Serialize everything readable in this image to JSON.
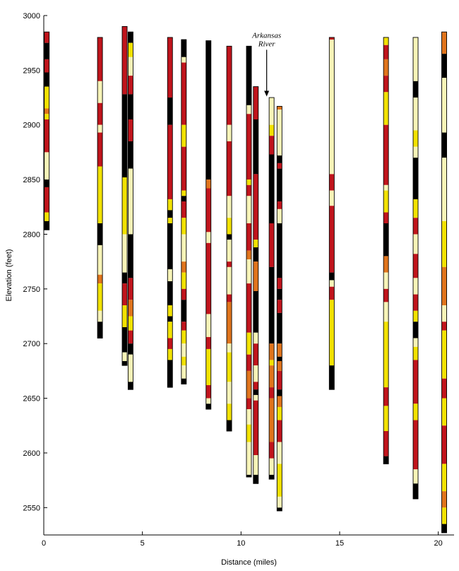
{
  "chart_data": {
    "type": "bar",
    "xlabel": "Distance (miles)",
    "ylabel": "Elevation (feet)",
    "xlim": [
      0,
      20.8
    ],
    "ylim": [
      2525,
      3000
    ],
    "xticks": [
      0,
      5,
      10,
      15,
      20
    ],
    "yticks": [
      2550,
      2600,
      2650,
      2700,
      2750,
      2800,
      2850,
      2900,
      2950,
      3000
    ],
    "annotation": {
      "lines": [
        "Arkansas",
        "River"
      ],
      "x": 11.3,
      "arrow_top": 2970,
      "arrow_bottom": 2926
    },
    "colors": {
      "B": "#000000",
      "R": "#c0141c",
      "O": "#e0741c",
      "Y": "#f2e200",
      "C": "#f7f4b8"
    },
    "legend_colors": [
      "B",
      "R",
      "O",
      "Y",
      "C"
    ],
    "wells": [
      {
        "x": 0.15,
        "top": 2985,
        "bottom": 2804,
        "layers": [
          [
            "R",
            2975
          ],
          [
            "B",
            2960
          ],
          [
            "R",
            2948
          ],
          [
            "B",
            2935
          ],
          [
            "Y",
            2915
          ],
          [
            "O",
            2910
          ],
          [
            "Y",
            2905
          ],
          [
            "R",
            2875
          ],
          [
            "C",
            2850
          ],
          [
            "B",
            2843
          ],
          [
            "R",
            2820
          ],
          [
            "Y",
            2812
          ],
          [
            "B",
            2804
          ]
        ]
      },
      {
        "x": 2.85,
        "top": 2980,
        "bottom": 2705,
        "layers": [
          [
            "R",
            2940
          ],
          [
            "C",
            2920
          ],
          [
            "R",
            2900
          ],
          [
            "C",
            2893
          ],
          [
            "R",
            2862
          ],
          [
            "Y",
            2810
          ],
          [
            "B",
            2790
          ],
          [
            "C",
            2763
          ],
          [
            "O",
            2755
          ],
          [
            "Y",
            2730
          ],
          [
            "C",
            2720
          ],
          [
            "B",
            2705
          ]
        ]
      },
      {
        "x": 4.1,
        "top": 2990,
        "bottom": 2680,
        "layers": [
          [
            "R",
            2928
          ],
          [
            "B",
            2852
          ],
          [
            "Y",
            2800
          ],
          [
            "C",
            2765
          ],
          [
            "B",
            2755
          ],
          [
            "R",
            2735
          ],
          [
            "Y",
            2715
          ],
          [
            "B",
            2692
          ],
          [
            "C",
            2684
          ],
          [
            "B",
            2680
          ]
        ]
      },
      {
        "x": 4.4,
        "top": 2985,
        "bottom": 2658,
        "layers": [
          [
            "B",
            2975
          ],
          [
            "Y",
            2962
          ],
          [
            "C",
            2945
          ],
          [
            "R",
            2928
          ],
          [
            "B",
            2905
          ],
          [
            "R",
            2885
          ],
          [
            "B",
            2860
          ],
          [
            "C",
            2800
          ],
          [
            "B",
            2760
          ],
          [
            "R",
            2740
          ],
          [
            "O",
            2725
          ],
          [
            "Y",
            2712
          ],
          [
            "R",
            2700
          ],
          [
            "B",
            2690
          ],
          [
            "C",
            2665
          ],
          [
            "B",
            2658
          ]
        ]
      },
      {
        "x": 6.4,
        "top": 2980,
        "bottom": 2660,
        "layers": [
          [
            "R",
            2925
          ],
          [
            "B",
            2900
          ],
          [
            "R",
            2832
          ],
          [
            "Y",
            2822
          ],
          [
            "B",
            2815
          ],
          [
            "Y",
            2810
          ],
          [
            "B",
            2768
          ],
          [
            "C",
            2757
          ],
          [
            "B",
            2735
          ],
          [
            "Y",
            2725
          ],
          [
            "B",
            2720
          ],
          [
            "Y",
            2705
          ],
          [
            "R",
            2695
          ],
          [
            "Y",
            2685
          ],
          [
            "B",
            2660
          ]
        ]
      },
      {
        "x": 7.1,
        "top": 2978,
        "bottom": 2663,
        "layers": [
          [
            "B",
            2962
          ],
          [
            "C",
            2957
          ],
          [
            "R",
            2900
          ],
          [
            "Y",
            2880
          ],
          [
            "R",
            2840
          ],
          [
            "Y",
            2835
          ],
          [
            "B",
            2830
          ],
          [
            "R",
            2815
          ],
          [
            "Y",
            2800
          ],
          [
            "C",
            2775
          ],
          [
            "O",
            2765
          ],
          [
            "Y",
            2750
          ],
          [
            "R",
            2740
          ],
          [
            "B",
            2720
          ],
          [
            "R",
            2712
          ],
          [
            "Y",
            2700
          ],
          [
            "C",
            2688
          ],
          [
            "Y",
            2680
          ],
          [
            "C",
            2668
          ],
          [
            "B",
            2663
          ]
        ]
      },
      {
        "x": 8.35,
        "top": 2977,
        "bottom": 2640,
        "layers": [
          [
            "B",
            2850
          ],
          [
            "O",
            2842
          ],
          [
            "R",
            2802
          ],
          [
            "C",
            2792
          ],
          [
            "R",
            2727
          ],
          [
            "C",
            2706
          ],
          [
            "R",
            2695
          ],
          [
            "Y",
            2662
          ],
          [
            "R",
            2650
          ],
          [
            "C",
            2645
          ],
          [
            "B",
            2640
          ]
        ]
      },
      {
        "x": 9.4,
        "top": 2972,
        "bottom": 2620,
        "layers": [
          [
            "R",
            2900
          ],
          [
            "C",
            2885
          ],
          [
            "R",
            2835
          ],
          [
            "C",
            2815
          ],
          [
            "Y",
            2800
          ],
          [
            "B",
            2795
          ],
          [
            "C",
            2775
          ],
          [
            "R",
            2770
          ],
          [
            "C",
            2745
          ],
          [
            "R",
            2738
          ],
          [
            "O",
            2700
          ],
          [
            "C",
            2692
          ],
          [
            "Y",
            2665
          ],
          [
            "C",
            2645
          ],
          [
            "Y",
            2630
          ],
          [
            "B",
            2620
          ]
        ]
      },
      {
        "x": 10.4,
        "top": 2972,
        "bottom": 2578,
        "layers": [
          [
            "B",
            2918
          ],
          [
            "C",
            2910
          ],
          [
            "R",
            2850
          ],
          [
            "Y",
            2845
          ],
          [
            "R",
            2835
          ],
          [
            "C",
            2810
          ],
          [
            "R",
            2785
          ],
          [
            "O",
            2777
          ],
          [
            "C",
            2755
          ],
          [
            "R",
            2710
          ],
          [
            "Y",
            2690
          ],
          [
            "R",
            2675
          ],
          [
            "O",
            2650
          ],
          [
            "R",
            2640
          ],
          [
            "C",
            2626
          ],
          [
            "Y",
            2610
          ],
          [
            "C",
            2580
          ],
          [
            "B",
            2578
          ]
        ]
      },
      {
        "x": 10.75,
        "top": 2935,
        "bottom": 2572,
        "layers": [
          [
            "R",
            2905
          ],
          [
            "B",
            2855
          ],
          [
            "R",
            2795
          ],
          [
            "Y",
            2788
          ],
          [
            "B",
            2775
          ],
          [
            "O",
            2748
          ],
          [
            "B",
            2710
          ],
          [
            "C",
            2700
          ],
          [
            "R",
            2680
          ],
          [
            "C",
            2665
          ],
          [
            "R",
            2658
          ],
          [
            "B",
            2653
          ],
          [
            "C",
            2648
          ],
          [
            "R",
            2598
          ],
          [
            "C",
            2580
          ],
          [
            "B",
            2572
          ]
        ]
      },
      {
        "x": 11.55,
        "top": 2925,
        "bottom": 2576,
        "layers": [
          [
            "C",
            2900
          ],
          [
            "Y",
            2890
          ],
          [
            "R",
            2873
          ],
          [
            "B",
            2810
          ],
          [
            "R",
            2770
          ],
          [
            "B",
            2700
          ],
          [
            "O",
            2685
          ],
          [
            "Y",
            2680
          ],
          [
            "O",
            2660
          ],
          [
            "R",
            2650
          ],
          [
            "O",
            2610
          ],
          [
            "R",
            2595
          ],
          [
            "C",
            2580
          ],
          [
            "B",
            2576
          ]
        ]
      },
      {
        "x": 11.95,
        "top": 2917,
        "bottom": 2547,
        "layers": [
          [
            "O",
            2914
          ],
          [
            "C",
            2872
          ],
          [
            "B",
            2865
          ],
          [
            "R",
            2860
          ],
          [
            "B",
            2830
          ],
          [
            "R",
            2823
          ],
          [
            "C",
            2810
          ],
          [
            "B",
            2760
          ],
          [
            "R",
            2750
          ],
          [
            "B",
            2740
          ],
          [
            "R",
            2728
          ],
          [
            "B",
            2700
          ],
          [
            "O",
            2688
          ],
          [
            "B",
            2684
          ],
          [
            "O",
            2675
          ],
          [
            "R",
            2658
          ],
          [
            "B",
            2652
          ],
          [
            "O",
            2642
          ],
          [
            "Y",
            2630
          ],
          [
            "R",
            2610
          ],
          [
            "C",
            2590
          ],
          [
            "Y",
            2560
          ],
          [
            "C",
            2550
          ],
          [
            "B",
            2547
          ]
        ]
      },
      {
        "x": 14.6,
        "top": 2980,
        "bottom": 2658,
        "layers": [
          [
            "R",
            2978
          ],
          [
            "C",
            2855
          ],
          [
            "R",
            2840
          ],
          [
            "C",
            2826
          ],
          [
            "R",
            2765
          ],
          [
            "B",
            2758
          ],
          [
            "C",
            2752
          ],
          [
            "R",
            2740
          ],
          [
            "Y",
            2680
          ],
          [
            "B",
            2658
          ]
        ]
      },
      {
        "x": 17.35,
        "top": 2980,
        "bottom": 2590,
        "layers": [
          [
            "Y",
            2973
          ],
          [
            "R",
            2960
          ],
          [
            "O",
            2945
          ],
          [
            "R",
            2930
          ],
          [
            "Y",
            2900
          ],
          [
            "R",
            2845
          ],
          [
            "C",
            2840
          ],
          [
            "Y",
            2820
          ],
          [
            "R",
            2810
          ],
          [
            "B",
            2780
          ],
          [
            "O",
            2765
          ],
          [
            "C",
            2750
          ],
          [
            "R",
            2738
          ],
          [
            "C",
            2720
          ],
          [
            "Y",
            2660
          ],
          [
            "R",
            2643
          ],
          [
            "Y",
            2620
          ],
          [
            "R",
            2597
          ],
          [
            "B",
            2590
          ]
        ]
      },
      {
        "x": 18.85,
        "top": 2980,
        "bottom": 2558,
        "layers": [
          [
            "C",
            2940
          ],
          [
            "B",
            2925
          ],
          [
            "C",
            2895
          ],
          [
            "Y",
            2880
          ],
          [
            "C",
            2870
          ],
          [
            "B",
            2832
          ],
          [
            "Y",
            2815
          ],
          [
            "R",
            2800
          ],
          [
            "C",
            2782
          ],
          [
            "R",
            2760
          ],
          [
            "C",
            2745
          ],
          [
            "R",
            2730
          ],
          [
            "Y",
            2720
          ],
          [
            "B",
            2705
          ],
          [
            "C",
            2697
          ],
          [
            "Y",
            2685
          ],
          [
            "R",
            2645
          ],
          [
            "Y",
            2630
          ],
          [
            "R",
            2585
          ],
          [
            "C",
            2572
          ],
          [
            "B",
            2558
          ]
        ]
      },
      {
        "x": 20.3,
        "top": 2985,
        "bottom": 2527,
        "layers": [
          [
            "O",
            2965
          ],
          [
            "B",
            2943
          ],
          [
            "C",
            2893
          ],
          [
            "B",
            2870
          ],
          [
            "C",
            2812
          ],
          [
            "Y",
            2770
          ],
          [
            "O",
            2735
          ],
          [
            "C",
            2720
          ],
          [
            "R",
            2712
          ],
          [
            "Y",
            2668
          ],
          [
            "R",
            2650
          ],
          [
            "Y",
            2625
          ],
          [
            "R",
            2590
          ],
          [
            "Y",
            2565
          ],
          [
            "O",
            2550
          ],
          [
            "Y",
            2535
          ],
          [
            "B",
            2527
          ]
        ]
      }
    ]
  }
}
